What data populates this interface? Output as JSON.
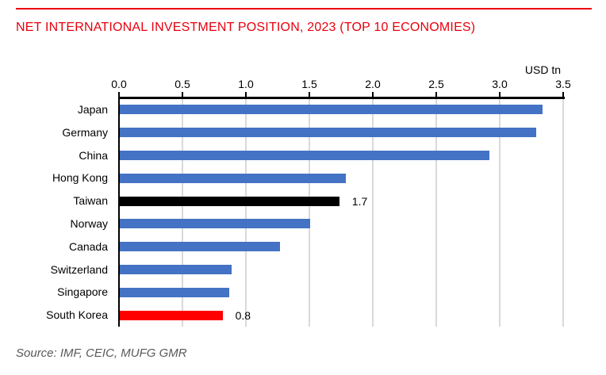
{
  "header": {
    "title": "NET INTERNATIONAL INVESTMENT POSITION, 2023 (TOP 10 ECONOMIES)"
  },
  "axis": {
    "unit_label": "USD tn"
  },
  "source": "Source: IMF, CEIC, MUFG GMR",
  "colors": {
    "accent_red": "#e8000d",
    "bar_default": "#4472c4",
    "bar_highlight_black": "#000000",
    "bar_highlight_red": "#ff0000",
    "gridline": "#d9d9d9",
    "axis": "#000000",
    "source_text": "#595959"
  },
  "chart_data": {
    "type": "bar",
    "orientation": "horizontal",
    "title": "NET INTERNATIONAL INVESTMENT POSITION, 2023 (TOP 10 ECONOMIES)",
    "xlabel": "USD tn",
    "ylabel": "",
    "xlim": [
      0,
      3.5
    ],
    "xticks": [
      "0.0",
      "0.5",
      "1.0",
      "1.5",
      "2.0",
      "2.5",
      "3.0",
      "3.5"
    ],
    "grid": true,
    "legend": false,
    "categories": [
      "Japan",
      "Germany",
      "China",
      "Hong Kong",
      "Taiwan",
      "Norway",
      "Canada",
      "Switzerland",
      "Singapore",
      "South Korea"
    ],
    "values": [
      3.33,
      3.28,
      2.91,
      1.78,
      1.73,
      1.5,
      1.26,
      0.88,
      0.86,
      0.81
    ],
    "bar_colors": [
      "#4472c4",
      "#4472c4",
      "#4472c4",
      "#4472c4",
      "#000000",
      "#4472c4",
      "#4472c4",
      "#4472c4",
      "#4472c4",
      "#ff0000"
    ],
    "data_labels": [
      "",
      "",
      "",
      "",
      "1.7",
      "",
      "",
      "",
      "",
      "0.8"
    ]
  }
}
